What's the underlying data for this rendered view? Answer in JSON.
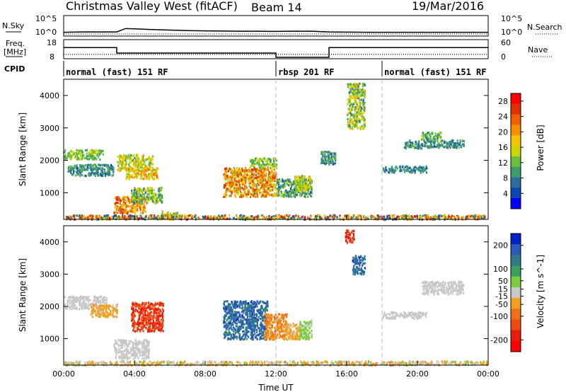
{
  "header": {
    "title": "Christmas Valley West (fitACF)",
    "beam": "Beam 14",
    "date": "19/Mar/2016"
  },
  "labels": {
    "nsky": "N.Sky",
    "nsearch": "N.Search",
    "freq_line1": "Freq.",
    "freq_line2": "[MHz]",
    "nave": "Nave",
    "cpid": "CPID",
    "exp10": "10^5",
    "exp0": "10^0",
    "freq_ticks": [
      "18",
      "8"
    ],
    "nave_ticks": [
      "60",
      "0"
    ]
  },
  "cpid_blocks": [
    {
      "label": "normal (fast) 151 RF",
      "start": 0,
      "end": 12
    },
    {
      "label": "rbsp 201 RF",
      "start": 12,
      "end": 18
    },
    {
      "label": "normal (fast) 151 RF",
      "start": 18,
      "end": 24
    }
  ],
  "colors": {
    "power": [
      "#0000ff",
      "#0d47b4",
      "#2e6e9e",
      "#3c9e6e",
      "#6bbf3a",
      "#c9d400",
      "#f5c400",
      "#f59000",
      "#f06000",
      "#e03000",
      "#ff0000"
    ],
    "velocity": [
      "#0022cc",
      "#2b5ab8",
      "#2e7a86",
      "#3aa060",
      "#7acc3a",
      "#c8c8c8",
      "#f2a020",
      "#f07018",
      "#ee4a12",
      "#e81c0c",
      "#ff0000"
    ]
  },
  "chart_data": [
    {
      "type": "line",
      "title": "N.Sky / N.Search",
      "ylabel": "N.Sky",
      "x_label": "Time UT",
      "xlim": [
        0,
        24
      ],
      "y_ticks": [
        "10^5",
        "10^0"
      ],
      "series": [
        {
          "name": "N.Sky",
          "x": [
            0,
            0.5,
            1,
            2,
            3,
            3.5,
            4,
            5,
            6,
            7,
            8,
            9,
            10,
            11,
            12,
            13,
            14,
            15,
            16,
            17,
            18,
            19,
            20,
            21,
            22,
            23,
            24
          ],
          "values": [
            0.5,
            0.55,
            0.6,
            0.6,
            0.6,
            1.6,
            1.5,
            1.3,
            1.15,
            1.0,
            0.9,
            0.85,
            0.8,
            0.8,
            0.75,
            0.8,
            0.8,
            0.6,
            0.55,
            0.5,
            0.5,
            0.5,
            0.5,
            0.5,
            0.5,
            0.5,
            0.5
          ]
        },
        {
          "name": "N.Search",
          "x": [
            0,
            24
          ],
          "values": [
            0,
            0
          ]
        }
      ]
    },
    {
      "type": "line",
      "title": "Freq / Nave",
      "ylabel": "Freq. [MHz]",
      "xlim": [
        0,
        24
      ],
      "y_ticks_left": [
        "18",
        "8"
      ],
      "y_ticks_right": [
        "60",
        "0"
      ],
      "series": [
        {
          "name": "Freq",
          "x": [
            0,
            3,
            3,
            12,
            12,
            15,
            15,
            24
          ],
          "values": [
            14,
            14,
            10.6,
            10.6,
            8,
            8,
            14,
            14
          ]
        },
        {
          "name": "Nave",
          "x": [
            0,
            24
          ],
          "values": [
            11,
            11
          ]
        }
      ]
    },
    {
      "type": "heatmap",
      "title": "Power",
      "xlabel": "Time UT",
      "ylabel": "Slant Range [km]",
      "xlim": [
        0,
        24
      ],
      "ylim": [
        180,
        4500
      ],
      "x_ticks": [
        "00:00",
        "04:00",
        "08:00",
        "12:00",
        "16:00",
        "20:00",
        "00:00"
      ],
      "y_ticks": [
        1000,
        2000,
        3000,
        4000
      ],
      "colorbar_label": "Power [dB]",
      "colorbar_ticks": [
        4,
        8,
        12,
        16,
        20,
        24,
        28
      ],
      "colorbar_range": [
        0,
        30
      ],
      "regions": [
        {
          "t0": 0.0,
          "t1": 2.2,
          "r0": 2050,
          "r1": 2350,
          "v0": 8,
          "v1": 16
        },
        {
          "t0": 0.2,
          "t1": 2.8,
          "r0": 1550,
          "r1": 1900,
          "v0": 4,
          "v1": 12
        },
        {
          "t0": 3.0,
          "t1": 5.0,
          "r0": 1700,
          "r1": 2200,
          "v0": 10,
          "v1": 20
        },
        {
          "t0": 3.5,
          "t1": 5.3,
          "r0": 1450,
          "r1": 1800,
          "v0": 12,
          "v1": 24
        },
        {
          "t0": 2.8,
          "t1": 4.6,
          "r0": 380,
          "r1": 900,
          "v0": 16,
          "v1": 28
        },
        {
          "t0": 3.8,
          "t1": 5.6,
          "r0": 700,
          "r1": 1200,
          "v0": 6,
          "v1": 18
        },
        {
          "t0": 5.5,
          "t1": 6.5,
          "r0": 250,
          "r1": 450,
          "v0": 8,
          "v1": 22
        },
        {
          "t0": 9.0,
          "t1": 12.0,
          "r0": 900,
          "r1": 1800,
          "v0": 12,
          "v1": 28
        },
        {
          "t0": 10.5,
          "t1": 12.0,
          "r0": 1800,
          "r1": 2100,
          "v0": 8,
          "v1": 16
        },
        {
          "t0": 12.0,
          "t1": 14.0,
          "r0": 900,
          "r1": 1450,
          "v0": 4,
          "v1": 16
        },
        {
          "t0": 13.0,
          "t1": 14.0,
          "r0": 1100,
          "r1": 1550,
          "v0": 10,
          "v1": 20
        },
        {
          "t0": 14.5,
          "t1": 15.4,
          "r0": 1900,
          "r1": 2300,
          "v0": 4,
          "v1": 12
        },
        {
          "t0": 16.0,
          "t1": 17.0,
          "r0": 3000,
          "r1": 4400,
          "v0": 6,
          "v1": 20
        },
        {
          "t0": 18.0,
          "t1": 20.5,
          "r0": 1650,
          "r1": 1850,
          "v0": 4,
          "v1": 10
        },
        {
          "t0": 19.2,
          "t1": 22.6,
          "r0": 2400,
          "r1": 2650,
          "v0": 4,
          "v1": 12
        },
        {
          "t0": 20.2,
          "t1": 21.3,
          "r0": 2650,
          "r1": 2900,
          "v0": 6,
          "v1": 14
        },
        {
          "t0": 0.0,
          "t1": 24.0,
          "r0": 200,
          "r1": 340,
          "v0": 2,
          "v1": 30
        }
      ]
    },
    {
      "type": "heatmap",
      "title": "Velocity",
      "xlabel": "Time UT",
      "ylabel": "Slant Range [km]",
      "xlim": [
        0,
        24
      ],
      "ylim": [
        180,
        4500
      ],
      "x_ticks": [
        "00:00",
        "04:00",
        "08:00",
        "12:00",
        "16:00",
        "20:00",
        "00:00"
      ],
      "y_ticks": [
        1000,
        2000,
        3000,
        4000
      ],
      "colorbar_label": "Velocity [m s^-1]",
      "colorbar_ticks": [
        200,
        100,
        50,
        15,
        -15,
        -50,
        -100,
        -200
      ],
      "colorbar_range": [
        -250,
        250
      ],
      "regions": [
        {
          "t0": 0.0,
          "t1": 2.4,
          "r0": 1950,
          "r1": 2350,
          "v0": -15,
          "v1": 15
        },
        {
          "t0": 1.5,
          "t1": 3.0,
          "r0": 1700,
          "r1": 2100,
          "v0": -60,
          "v1": -20
        },
        {
          "t0": 3.8,
          "t1": 5.6,
          "r0": 1250,
          "r1": 2150,
          "v0": -230,
          "v1": -120
        },
        {
          "t0": 2.8,
          "t1": 4.8,
          "r0": 400,
          "r1": 1000,
          "v0": -10,
          "v1": 10
        },
        {
          "t0": 9.0,
          "t1": 11.5,
          "r0": 1000,
          "r1": 2200,
          "v0": 120,
          "v1": 230
        },
        {
          "t0": 11.3,
          "t1": 12.6,
          "r0": 1000,
          "r1": 1800,
          "v0": -120,
          "v1": -40
        },
        {
          "t0": 12.5,
          "t1": 13.4,
          "r0": 1000,
          "r1": 1500,
          "v0": -50,
          "v1": -15
        },
        {
          "t0": 13.3,
          "t1": 14.0,
          "r0": 1000,
          "r1": 1600,
          "v0": 15,
          "v1": 60
        },
        {
          "t0": 15.9,
          "t1": 16.4,
          "r0": 4000,
          "r1": 4400,
          "v0": -230,
          "v1": -150
        },
        {
          "t0": 16.3,
          "t1": 17.0,
          "r0": 3000,
          "r1": 3600,
          "v0": 120,
          "v1": 230
        },
        {
          "t0": 18.0,
          "t1": 20.5,
          "r0": 1650,
          "r1": 1850,
          "v0": -10,
          "v1": 10
        },
        {
          "t0": 20.2,
          "t1": 22.6,
          "r0": 2400,
          "r1": 2800,
          "v0": -10,
          "v1": 10
        },
        {
          "t0": 0.0,
          "t1": 24.0,
          "r0": 200,
          "r1": 330,
          "v0": -80,
          "v1": 40
        }
      ]
    }
  ]
}
